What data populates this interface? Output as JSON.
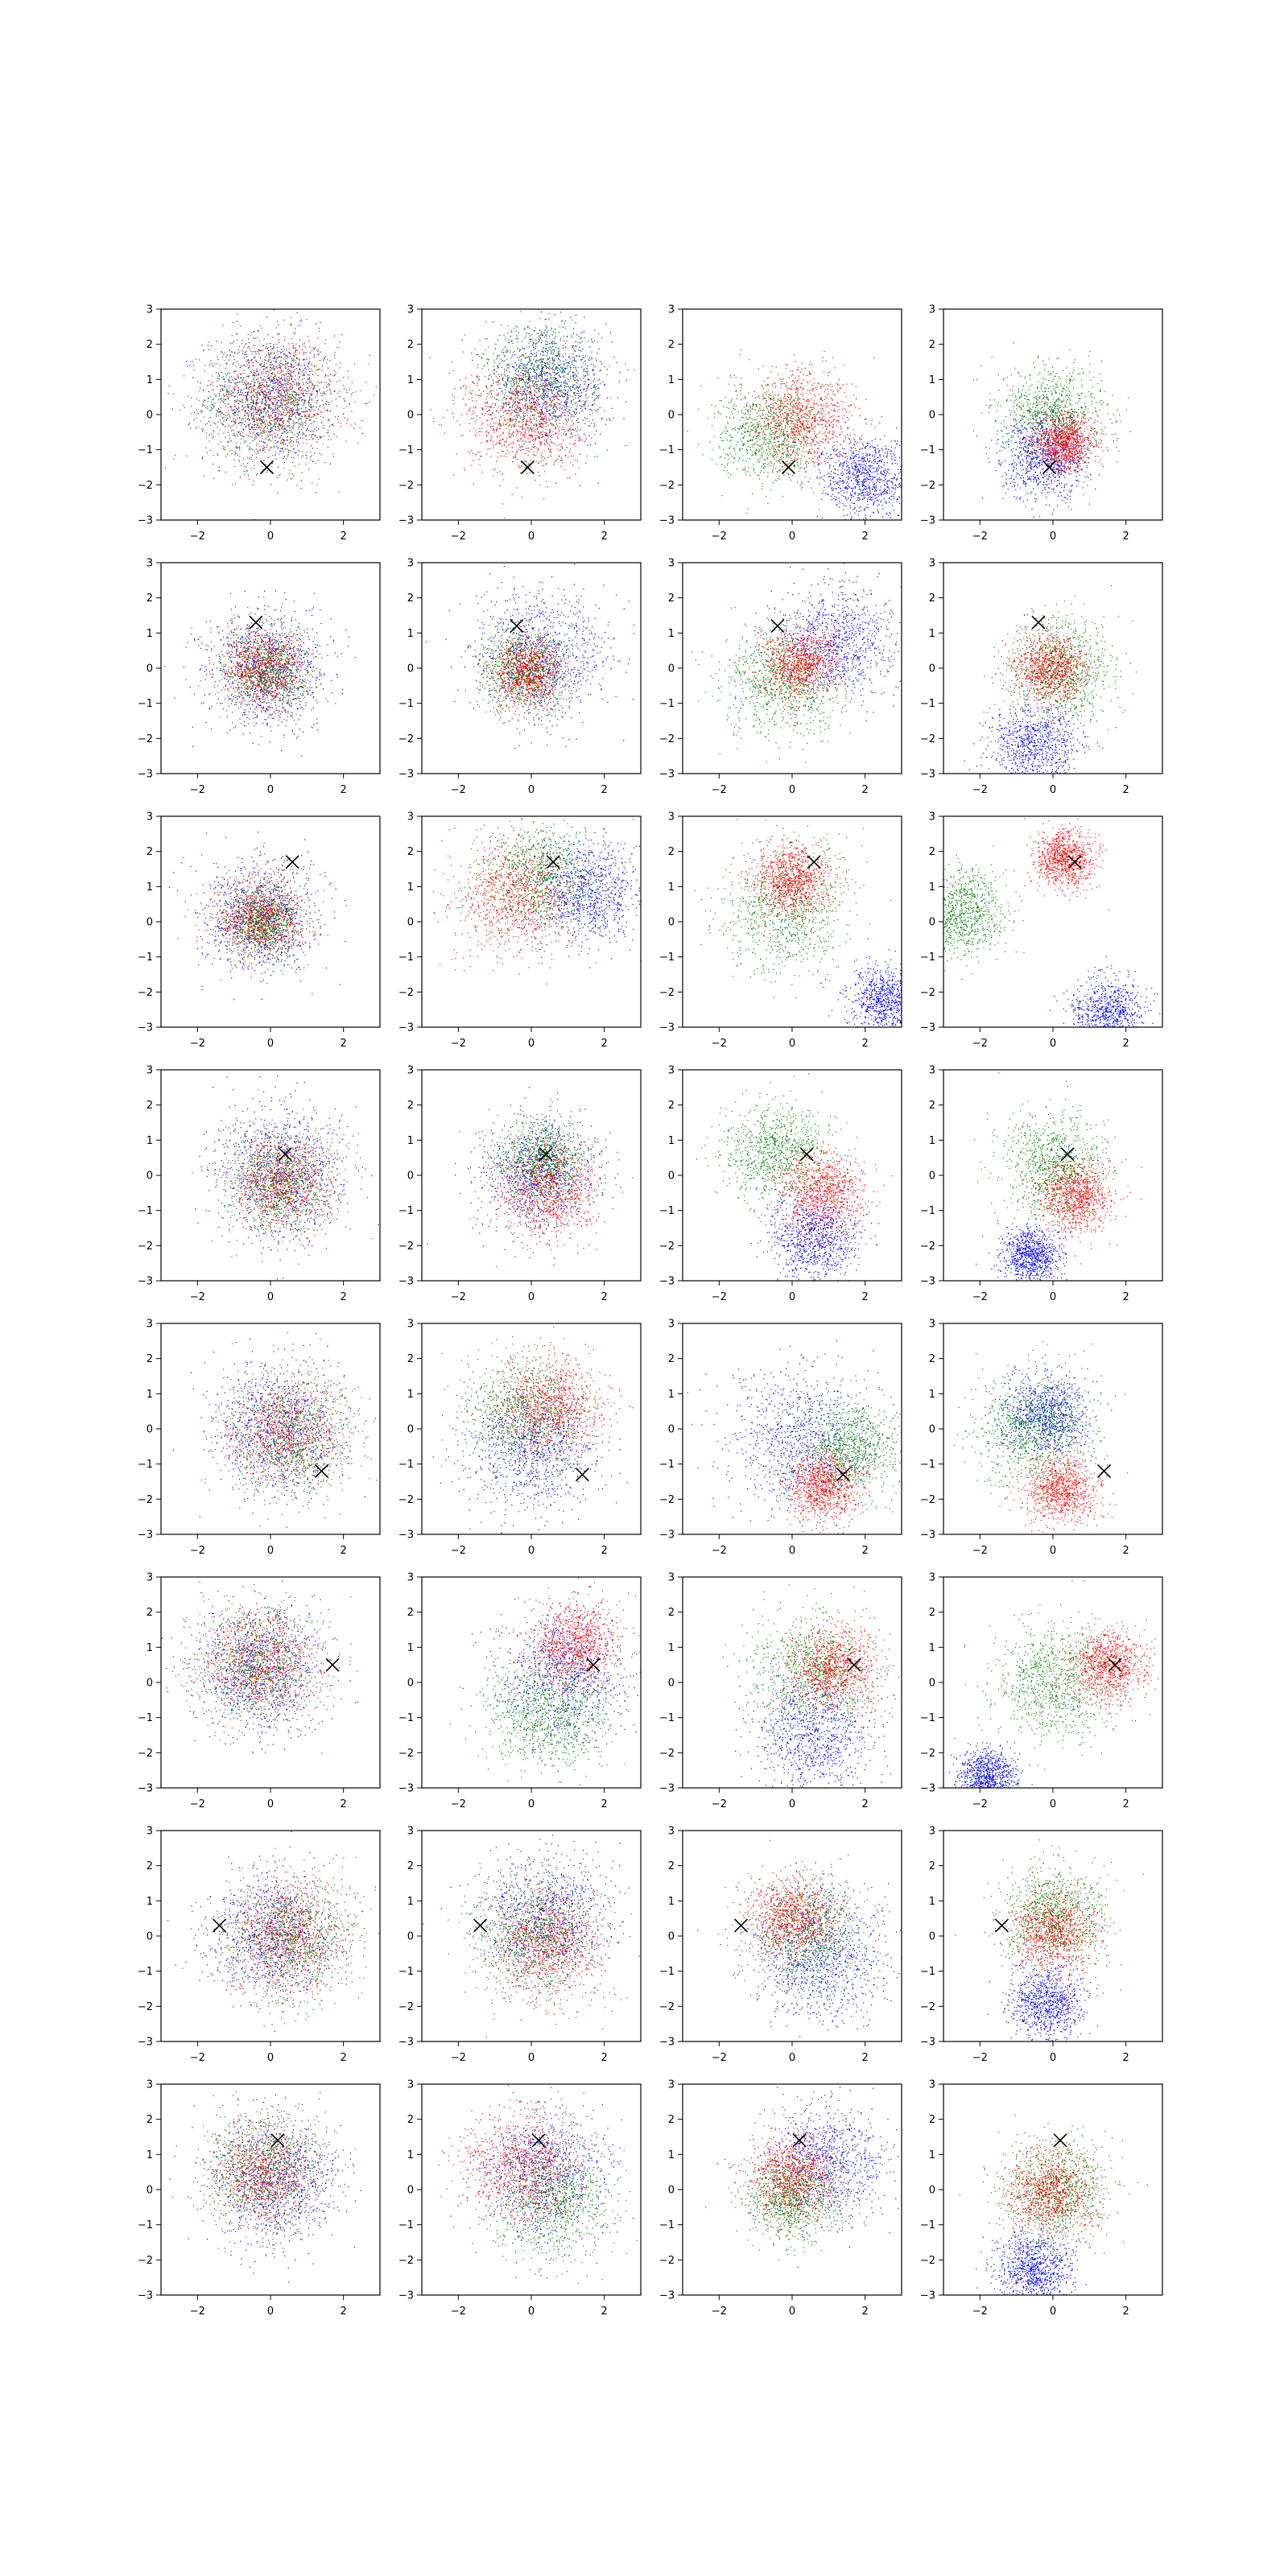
{
  "chart_data": {
    "type": "scatter",
    "grid": false,
    "legend": "none",
    "rows": 8,
    "cols": 4,
    "xlim": [
      -3,
      3
    ],
    "ylim": [
      -3,
      3
    ],
    "xticks": [
      -2,
      0,
      2
    ],
    "yticks": [
      -3,
      -2,
      -1,
      0,
      1,
      2,
      3
    ],
    "xtick_labels": [
      "−2",
      "0",
      "2"
    ],
    "ytick_labels": [
      "−3",
      "−2",
      "−1",
      "0",
      "1",
      "2",
      "3"
    ],
    "colors": {
      "blue": "#0000ff",
      "green": "#008000",
      "red": "#ff0000",
      "marker": "#000000"
    },
    "marker_symbol": "x",
    "points_per_series": 900,
    "panels": [
      {
        "marker": [
          -0.1,
          -1.5
        ],
        "blue": {
          "center": [
            0.0,
            0.5
          ],
          "spread": 0.9
        },
        "green": {
          "center": [
            0.0,
            0.4
          ],
          "spread": 0.9
        },
        "red": {
          "center": [
            0.1,
            0.4
          ],
          "spread": 0.9
        }
      },
      {
        "marker": [
          -0.1,
          -1.5
        ],
        "blue": {
          "center": [
            0.5,
            0.8
          ],
          "spread": 0.8
        },
        "green": {
          "center": [
            0.2,
            1.0
          ],
          "spread": 0.8
        },
        "red": {
          "center": [
            -0.2,
            -0.1
          ],
          "spread": 0.8
        }
      },
      {
        "marker": [
          -0.1,
          -1.5
        ],
        "blue": {
          "center": [
            2.0,
            -1.8
          ],
          "spread": 0.6
        },
        "green": {
          "center": [
            -0.6,
            -0.5
          ],
          "spread": 0.7
        },
        "red": {
          "center": [
            0.3,
            -0.1
          ],
          "spread": 0.7
        }
      },
      {
        "marker": [
          -0.1,
          -1.5
        ],
        "blue": {
          "center": [
            -0.2,
            -1.2
          ],
          "spread": 0.6
        },
        "green": {
          "center": [
            0.0,
            0.0
          ],
          "spread": 0.7
        },
        "red": {
          "center": [
            0.3,
            -0.8
          ],
          "spread": 0.4
        }
      },
      {
        "marker": [
          -0.4,
          1.3
        ],
        "blue": {
          "center": [
            -0.1,
            0.0
          ],
          "spread": 0.8
        },
        "green": {
          "center": [
            -0.1,
            -0.1
          ],
          "spread": 0.6
        },
        "red": {
          "center": [
            -0.2,
            0.0
          ],
          "spread": 0.6
        }
      },
      {
        "marker": [
          -0.4,
          1.2
        ],
        "blue": {
          "center": [
            0.3,
            0.4
          ],
          "spread": 0.9
        },
        "green": {
          "center": [
            -0.2,
            0.0
          ],
          "spread": 0.6
        },
        "red": {
          "center": [
            -0.1,
            -0.1
          ],
          "spread": 0.5
        }
      },
      {
        "marker": [
          -0.4,
          1.2
        ],
        "blue": {
          "center": [
            1.2,
            0.8
          ],
          "spread": 0.8
        },
        "green": {
          "center": [
            -0.3,
            -0.4
          ],
          "spread": 0.8
        },
        "red": {
          "center": [
            0.2,
            0.1
          ],
          "spread": 0.5
        }
      },
      {
        "marker": [
          -0.4,
          1.3
        ],
        "blue": {
          "center": [
            -0.5,
            -2.2
          ],
          "spread": 0.6
        },
        "green": {
          "center": [
            0.2,
            0.0
          ],
          "spread": 0.7
        },
        "red": {
          "center": [
            -0.1,
            0.0
          ],
          "spread": 0.5
        }
      },
      {
        "marker": [
          0.6,
          1.7
        ],
        "blue": {
          "center": [
            -0.3,
            0.2
          ],
          "spread": 0.8
        },
        "green": {
          "center": [
            -0.2,
            0.0
          ],
          "spread": 0.5
        },
        "red": {
          "center": [
            -0.3,
            0.1
          ],
          "spread": 0.6
        }
      },
      {
        "marker": [
          0.6,
          1.7
        ],
        "blue": {
          "center": [
            1.6,
            0.8
          ],
          "spread": 0.7
        },
        "green": {
          "center": [
            0.2,
            1.3
          ],
          "spread": 0.8
        },
        "red": {
          "center": [
            -0.5,
            0.7
          ],
          "spread": 0.8
        }
      },
      {
        "marker": [
          0.6,
          1.7
        ],
        "blue": {
          "center": [
            2.6,
            -2.2
          ],
          "spread": 0.5
        },
        "green": {
          "center": [
            -0.2,
            0.3
          ],
          "spread": 0.9
        },
        "red": {
          "center": [
            0.0,
            1.2
          ],
          "spread": 0.5
        }
      },
      {
        "marker": [
          0.6,
          1.7
        ],
        "blue": {
          "center": [
            1.5,
            -2.6
          ],
          "spread": 0.5
        },
        "green": {
          "center": [
            -2.5,
            0.3
          ],
          "spread": 0.6
        },
        "red": {
          "center": [
            0.3,
            1.8
          ],
          "spread": 0.4
        }
      },
      {
        "marker": [
          0.4,
          0.6
        ],
        "blue": {
          "center": [
            0.3,
            0.1
          ],
          "spread": 0.9
        },
        "green": {
          "center": [
            0.2,
            -0.3
          ],
          "spread": 0.7
        },
        "red": {
          "center": [
            0.3,
            -0.2
          ],
          "spread": 0.7
        }
      },
      {
        "marker": [
          0.4,
          0.6
        ],
        "blue": {
          "center": [
            0.2,
            0.0
          ],
          "spread": 0.8
        },
        "green": {
          "center": [
            0.3,
            0.4
          ],
          "spread": 0.6
        },
        "red": {
          "center": [
            0.4,
            -0.4
          ],
          "spread": 0.7
        }
      },
      {
        "marker": [
          0.4,
          0.6
        ],
        "blue": {
          "center": [
            0.6,
            -1.8
          ],
          "spread": 0.6
        },
        "green": {
          "center": [
            -0.4,
            0.6
          ],
          "spread": 0.7
        },
        "red": {
          "center": [
            0.8,
            -0.5
          ],
          "spread": 0.6
        }
      },
      {
        "marker": [
          0.4,
          0.6
        ],
        "blue": {
          "center": [
            -0.6,
            -2.3
          ],
          "spread": 0.4
        },
        "green": {
          "center": [
            0.0,
            0.3
          ],
          "spread": 0.7
        },
        "red": {
          "center": [
            0.6,
            -0.6
          ],
          "spread": 0.5
        }
      },
      {
        "marker": [
          1.4,
          -1.2
        ],
        "blue": {
          "center": [
            0.2,
            0.0
          ],
          "spread": 0.9
        },
        "green": {
          "center": [
            0.5,
            -0.2
          ],
          "spread": 0.8
        },
        "red": {
          "center": [
            0.4,
            -0.1
          ],
          "spread": 0.8
        }
      },
      {
        "marker": [
          1.4,
          -1.3
        ],
        "blue": {
          "center": [
            0.0,
            -0.6
          ],
          "spread": 0.9
        },
        "green": {
          "center": [
            -0.2,
            0.5
          ],
          "spread": 0.8
        },
        "red": {
          "center": [
            0.5,
            0.6
          ],
          "spread": 0.7
        }
      },
      {
        "marker": [
          1.4,
          -1.3
        ],
        "blue": {
          "center": [
            0.2,
            -0.2
          ],
          "spread": 1.0
        },
        "green": {
          "center": [
            1.5,
            -0.6
          ],
          "spread": 0.7
        },
        "red": {
          "center": [
            0.8,
            -1.6
          ],
          "spread": 0.5
        }
      },
      {
        "marker": [
          1.4,
          -1.2
        ],
        "blue": {
          "center": [
            -0.2,
            0.4
          ],
          "spread": 0.6
        },
        "green": {
          "center": [
            -0.5,
            0.0
          ],
          "spread": 0.8
        },
        "red": {
          "center": [
            0.2,
            -1.7
          ],
          "spread": 0.5
        }
      },
      {
        "marker": [
          1.7,
          0.5
        ],
        "blue": {
          "center": [
            -0.3,
            0.4
          ],
          "spread": 0.9
        },
        "green": {
          "center": [
            -0.4,
            0.5
          ],
          "spread": 0.8
        },
        "red": {
          "center": [
            -0.3,
            0.6
          ],
          "spread": 0.8
        }
      },
      {
        "marker": [
          1.7,
          0.5
        ],
        "blue": {
          "center": [
            0.9,
            0.2
          ],
          "spread": 0.9
        },
        "green": {
          "center": [
            0.4,
            -0.9
          ],
          "spread": 0.8
        },
        "red": {
          "center": [
            1.2,
            1.1
          ],
          "spread": 0.6
        }
      },
      {
        "marker": [
          1.7,
          0.5
        ],
        "blue": {
          "center": [
            0.5,
            -1.5
          ],
          "spread": 0.8
        },
        "green": {
          "center": [
            0.5,
            0.3
          ],
          "spread": 0.8
        },
        "red": {
          "center": [
            1.2,
            0.4
          ],
          "spread": 0.6
        }
      },
      {
        "marker": [
          1.7,
          0.5
        ],
        "blue": {
          "center": [
            -1.8,
            -2.7
          ],
          "spread": 0.4
        },
        "green": {
          "center": [
            0.0,
            0.0
          ],
          "spread": 0.8
        },
        "red": {
          "center": [
            1.5,
            0.5
          ],
          "spread": 0.5
        }
      },
      {
        "marker": [
          -1.4,
          0.3
        ],
        "blue": {
          "center": [
            0.0,
            0.0
          ],
          "spread": 0.9
        },
        "green": {
          "center": [
            0.6,
            0.0
          ],
          "spread": 0.8
        },
        "red": {
          "center": [
            0.4,
            0.0
          ],
          "spread": 0.8
        }
      },
      {
        "marker": [
          -1.4,
          0.3
        ],
        "blue": {
          "center": [
            0.4,
            0.6
          ],
          "spread": 0.9
        },
        "green": {
          "center": [
            0.1,
            0.0
          ],
          "spread": 0.8
        },
        "red": {
          "center": [
            0.4,
            -0.2
          ],
          "spread": 0.8
        }
      },
      {
        "marker": [
          -1.4,
          0.3
        ],
        "blue": {
          "center": [
            0.8,
            -0.6
          ],
          "spread": 0.9
        },
        "green": {
          "center": [
            0.4,
            0.1
          ],
          "spread": 0.8
        },
        "red": {
          "center": [
            0.0,
            0.5
          ],
          "spread": 0.6
        }
      },
      {
        "marker": [
          -1.4,
          0.3
        ],
        "blue": {
          "center": [
            -0.2,
            -1.9
          ],
          "spread": 0.5
        },
        "green": {
          "center": [
            0.0,
            0.6
          ],
          "spread": 0.7
        },
        "red": {
          "center": [
            0.0,
            0.1
          ],
          "spread": 0.6
        }
      },
      {
        "marker": [
          0.2,
          1.4
        ],
        "blue": {
          "center": [
            0.1,
            0.3
          ],
          "spread": 0.9
        },
        "green": {
          "center": [
            -0.2,
            0.6
          ],
          "spread": 0.8
        },
        "red": {
          "center": [
            -0.2,
            0.4
          ],
          "spread": 0.7
        }
      },
      {
        "marker": [
          0.2,
          1.4
        ],
        "blue": {
          "center": [
            0.4,
            0.5
          ],
          "spread": 0.9
        },
        "green": {
          "center": [
            0.6,
            -0.3
          ],
          "spread": 0.8
        },
        "red": {
          "center": [
            -0.2,
            0.7
          ],
          "spread": 0.8
        }
      },
      {
        "marker": [
          0.2,
          1.4
        ],
        "blue": {
          "center": [
            1.0,
            0.8
          ],
          "spread": 0.8
        },
        "green": {
          "center": [
            0.0,
            -0.2
          ],
          "spread": 0.6
        },
        "red": {
          "center": [
            0.0,
            0.4
          ],
          "spread": 0.6
        }
      },
      {
        "marker": [
          0.2,
          1.4
        ],
        "blue": {
          "center": [
            -0.5,
            -2.2
          ],
          "spread": 0.5
        },
        "green": {
          "center": [
            0.1,
            0.0
          ],
          "spread": 0.7
        },
        "red": {
          "center": [
            -0.1,
            -0.1
          ],
          "spread": 0.6
        }
      }
    ]
  }
}
